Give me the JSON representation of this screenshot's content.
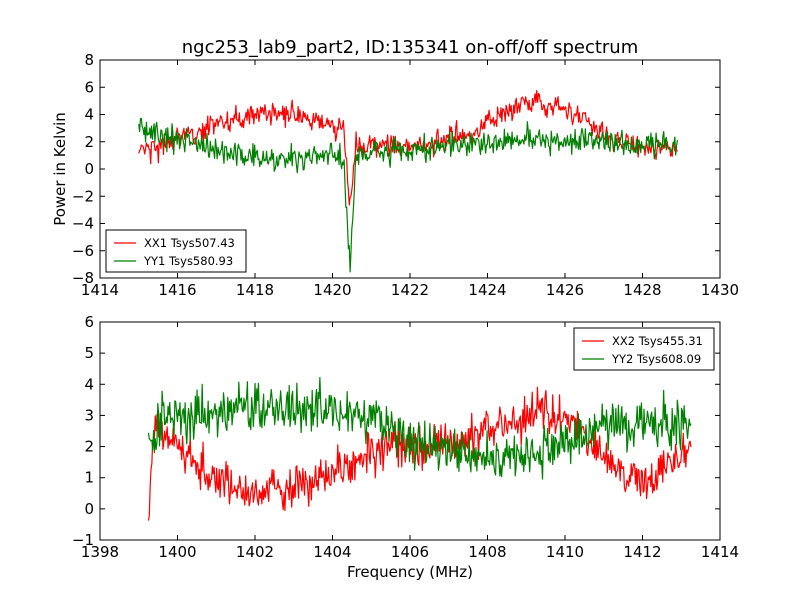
{
  "figure": {
    "title": "ngc253_lab9_part2, ID:135341 on-off/off spectrum",
    "xlabel": "Frequency (MHz)",
    "ylabel": "Power in Kelvin"
  },
  "chart_data": [
    {
      "type": "line",
      "title": "ngc253_lab9_part2, ID:135341 on-off/off spectrum",
      "xlabel": "",
      "ylabel": "Power in Kelvin",
      "xlim": [
        1414,
        1430
      ],
      "ylim": [
        -8,
        8
      ],
      "xticks": [
        1414,
        1416,
        1418,
        1420,
        1422,
        1424,
        1426,
        1428,
        1430
      ],
      "yticks": [
        -8,
        -6,
        -4,
        -2,
        0,
        2,
        4,
        6,
        8
      ],
      "grid": false,
      "legend_position": "lower-left",
      "series": [
        {
          "name": "XX1 Tsys507.43",
          "color": "#ff0000",
          "x_range": [
            1415.0,
            1428.9
          ],
          "profile": [
            [
              1415.0,
              1.5
            ],
            [
              1415.5,
              1.8
            ],
            [
              1416.0,
              2.2
            ],
            [
              1416.5,
              2.8
            ],
            [
              1417.0,
              3.2
            ],
            [
              1417.5,
              3.6
            ],
            [
              1418.0,
              4.0
            ],
            [
              1418.5,
              4.2
            ],
            [
              1419.0,
              4.0
            ],
            [
              1419.5,
              3.6
            ],
            [
              1420.0,
              3.2
            ],
            [
              1420.3,
              2.5
            ],
            [
              1420.45,
              -2.5
            ],
            [
              1420.6,
              1.5
            ],
            [
              1421.0,
              1.8
            ],
            [
              1422.0,
              1.6
            ],
            [
              1423.0,
              2.2
            ],
            [
              1423.5,
              2.6
            ],
            [
              1424.0,
              3.4
            ],
            [
              1424.5,
              4.3
            ],
            [
              1425.0,
              4.9
            ],
            [
              1425.5,
              4.8
            ],
            [
              1426.0,
              4.3
            ],
            [
              1426.5,
              3.5
            ],
            [
              1427.0,
              2.6
            ],
            [
              1427.5,
              2.0
            ],
            [
              1428.0,
              1.6
            ],
            [
              1428.9,
              1.5
            ]
          ],
          "noise_sigma": 0.8
        },
        {
          "name": "YY1 Tsys580.93",
          "color": "#008000",
          "x_range": [
            1415.0,
            1428.9
          ],
          "profile": [
            [
              1415.0,
              3.0
            ],
            [
              1415.5,
              2.6
            ],
            [
              1416.0,
              2.3
            ],
            [
              1416.5,
              1.8
            ],
            [
              1417.0,
              1.3
            ],
            [
              1418.0,
              0.9
            ],
            [
              1419.0,
              0.8
            ],
            [
              1419.5,
              0.9
            ],
            [
              1420.0,
              1.2
            ],
            [
              1420.3,
              0.5
            ],
            [
              1420.45,
              -7.5
            ],
            [
              1420.6,
              0.8
            ],
            [
              1421.0,
              1.3
            ],
            [
              1422.0,
              1.4
            ],
            [
              1423.0,
              1.8
            ],
            [
              1424.0,
              1.9
            ],
            [
              1425.0,
              2.2
            ],
            [
              1426.0,
              2.2
            ],
            [
              1427.0,
              2.0
            ],
            [
              1428.0,
              1.8
            ],
            [
              1428.9,
              1.8
            ]
          ],
          "noise_sigma": 0.9
        }
      ]
    },
    {
      "type": "line",
      "title": "",
      "xlabel": "Frequency (MHz)",
      "ylabel": "",
      "xlim": [
        1398,
        1414
      ],
      "ylim": [
        -1,
        6
      ],
      "xticks": [
        1398,
        1400,
        1402,
        1404,
        1406,
        1408,
        1410,
        1412,
        1414
      ],
      "yticks": [
        -1,
        0,
        1,
        2,
        3,
        4,
        5,
        6
      ],
      "grid": false,
      "legend_position": "upper-right",
      "series": [
        {
          "name": "XX2 Tsys455.31",
          "color": "#ff0000",
          "x_range": [
            1399.25,
            1413.25
          ],
          "profile": [
            [
              1399.25,
              -0.3
            ],
            [
              1399.4,
              2.8
            ],
            [
              1400.0,
              2.0
            ],
            [
              1400.5,
              1.4
            ],
            [
              1401.0,
              0.9
            ],
            [
              1401.5,
              0.6
            ],
            [
              1402.0,
              0.5
            ],
            [
              1403.0,
              0.6
            ],
            [
              1403.5,
              0.8
            ],
            [
              1404.0,
              1.2
            ],
            [
              1404.5,
              1.5
            ],
            [
              1405.0,
              1.8
            ],
            [
              1406.0,
              2.0
            ],
            [
              1407.0,
              2.2
            ],
            [
              1408.0,
              2.5
            ],
            [
              1408.5,
              2.8
            ],
            [
              1409.0,
              3.0
            ],
            [
              1409.5,
              3.2
            ],
            [
              1410.0,
              2.9
            ],
            [
              1410.5,
              2.4
            ],
            [
              1411.0,
              1.8
            ],
            [
              1411.5,
              1.2
            ],
            [
              1412.0,
              1.0
            ],
            [
              1412.5,
              1.3
            ],
            [
              1413.0,
              1.8
            ],
            [
              1413.25,
              2.0
            ]
          ],
          "noise_sigma": 0.6
        },
        {
          "name": "YY2 Tsys608.09",
          "color": "#008000",
          "x_range": [
            1399.25,
            1413.25
          ],
          "profile": [
            [
              1399.25,
              2.0
            ],
            [
              1399.5,
              2.8
            ],
            [
              1400.0,
              3.0
            ],
            [
              1401.0,
              3.1
            ],
            [
              1402.0,
              3.2
            ],
            [
              1403.0,
              3.3
            ],
            [
              1404.0,
              3.2
            ],
            [
              1405.0,
              2.9
            ],
            [
              1405.5,
              2.5
            ],
            [
              1406.0,
              2.1
            ],
            [
              1407.0,
              1.8
            ],
            [
              1408.0,
              1.6
            ],
            [
              1409.0,
              1.8
            ],
            [
              1410.0,
              2.2
            ],
            [
              1411.0,
              2.6
            ],
            [
              1412.0,
              2.8
            ],
            [
              1413.0,
              2.7
            ],
            [
              1413.25,
              2.6
            ]
          ],
          "noise_sigma": 0.7
        }
      ]
    }
  ]
}
